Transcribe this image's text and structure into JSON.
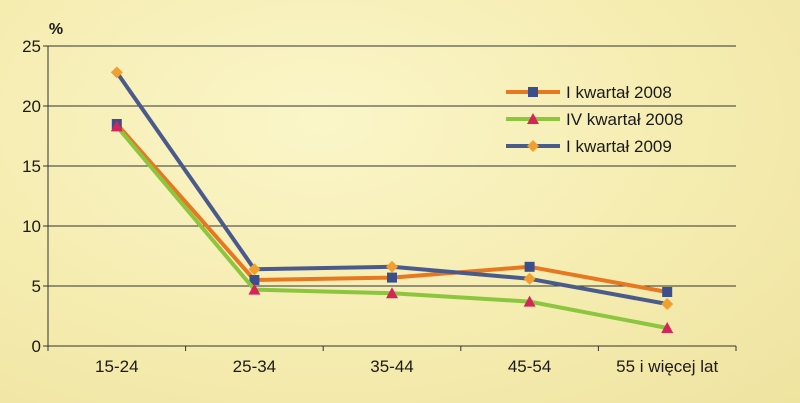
{
  "chart_data": {
    "type": "line",
    "y_unit_label": "%",
    "categories": [
      "15-24",
      "25-34",
      "35-44",
      "45-54",
      "55 i więcej lat"
    ],
    "ylim": [
      0,
      25
    ],
    "yticks": [
      0,
      5,
      10,
      15,
      20,
      25
    ],
    "grid": true,
    "legend_position": "top-right",
    "series": [
      {
        "name": "I kwartał 2008",
        "color": "#e87722",
        "marker": "square",
        "marker_color": "#3b4f8c",
        "values": [
          18.5,
          5.5,
          5.7,
          6.6,
          4.5
        ]
      },
      {
        "name": "IV kwartał 2008",
        "color": "#8cc63f",
        "marker": "triangle",
        "marker_color": "#d6245a",
        "values": [
          18.3,
          4.7,
          4.4,
          3.7,
          1.5
        ]
      },
      {
        "name": "I kwartał 2009",
        "color": "#4a5a8a",
        "marker": "diamond",
        "marker_color": "#f0a030",
        "values": [
          22.8,
          6.4,
          6.6,
          5.6,
          3.5
        ]
      }
    ]
  }
}
